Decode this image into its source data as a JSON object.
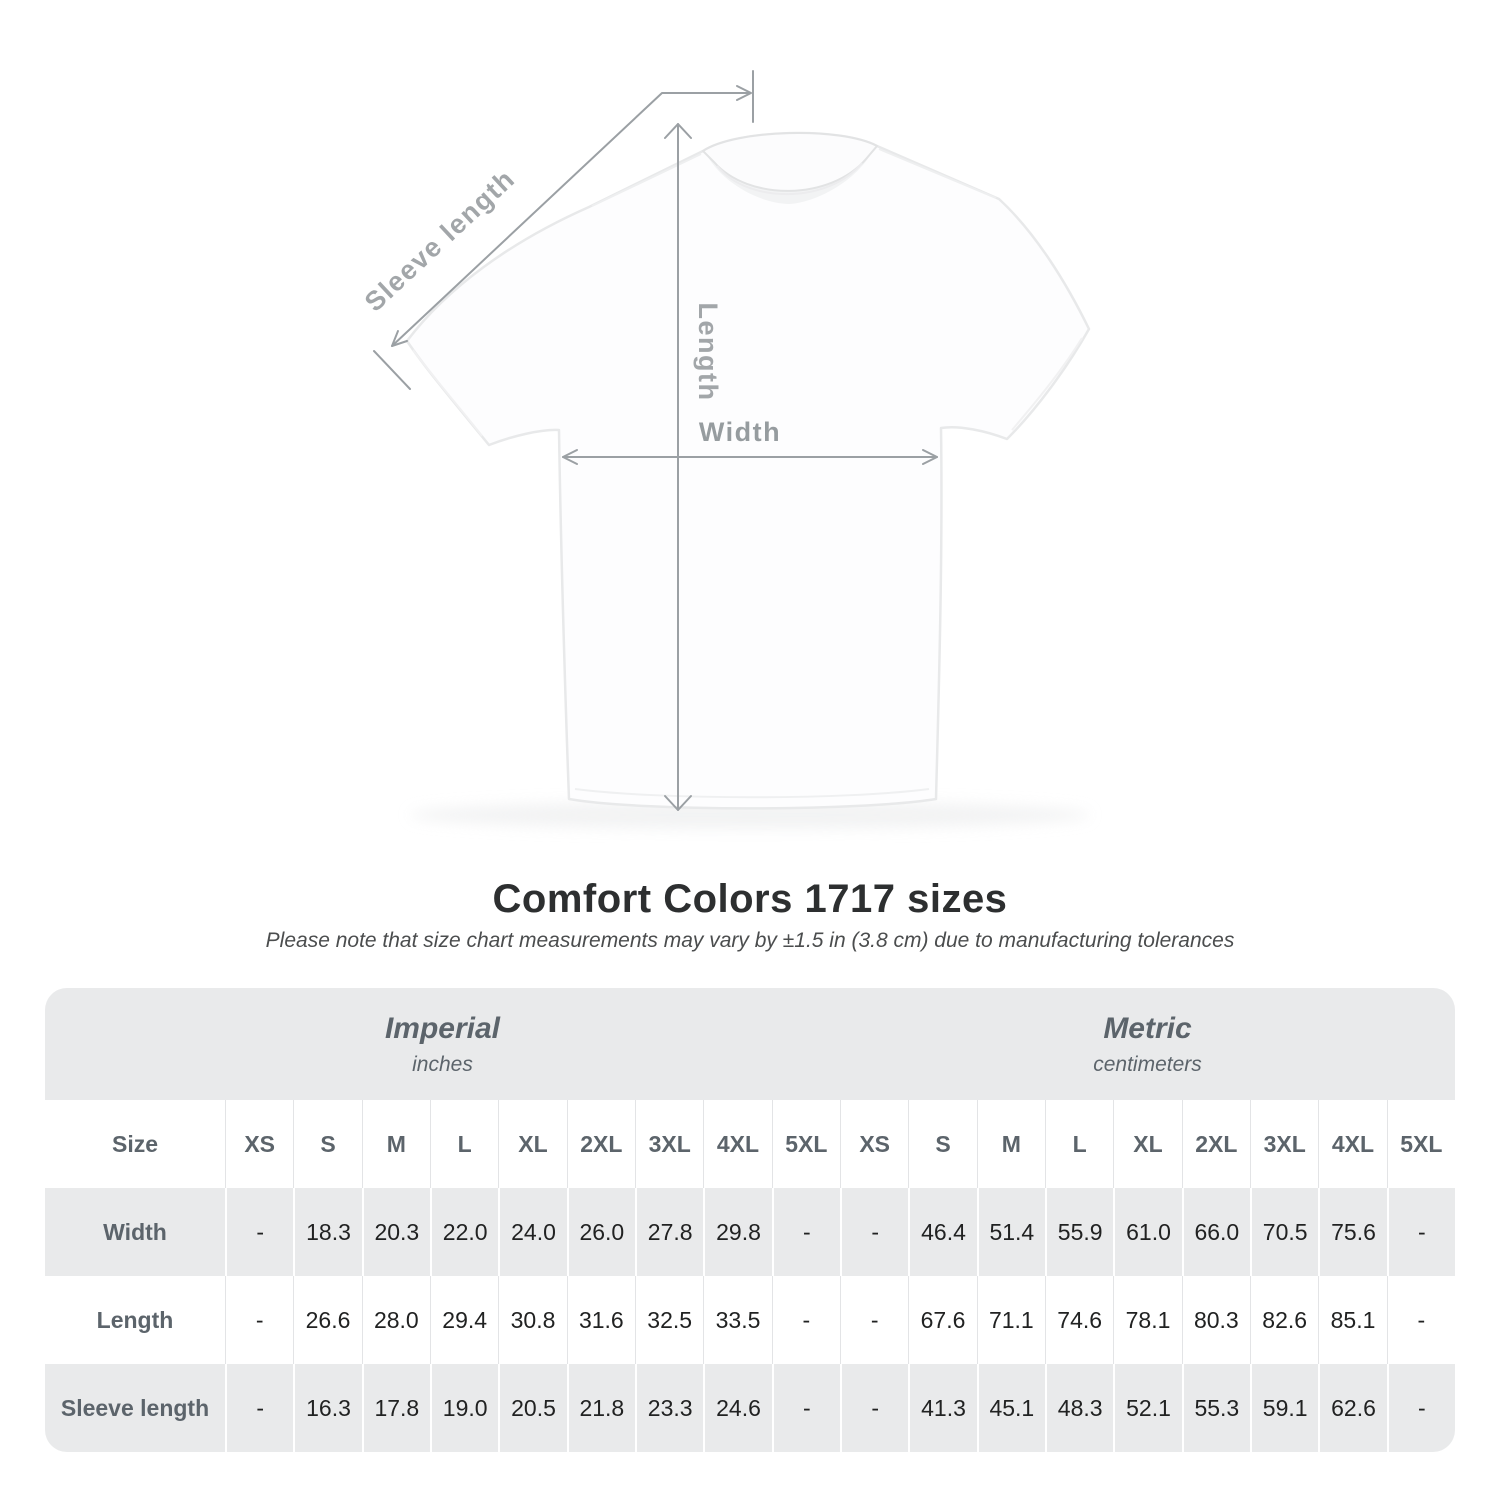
{
  "diagram": {
    "labels": {
      "sleeve_length": "Sleeve length",
      "length": "Length",
      "width": "Width"
    }
  },
  "title": "Comfort Colors 1717 sizes",
  "subtitle": "Please note that size chart measurements may vary by ±1.5 in (3.8 cm) due to manufacturing tolerances",
  "table": {
    "size_header": "Size",
    "groups": [
      {
        "label": "Imperial",
        "unit": "inches"
      },
      {
        "label": "Metric",
        "unit": "centimeters"
      }
    ],
    "sizes": [
      "XS",
      "S",
      "M",
      "L",
      "XL",
      "2XL",
      "3XL",
      "4XL",
      "5XL"
    ],
    "rows": [
      {
        "label": "Width",
        "imperial": [
          "-",
          "18.3",
          "20.3",
          "22.0",
          "24.0",
          "26.0",
          "27.8",
          "29.8",
          "-"
        ],
        "metric": [
          "-",
          "46.4",
          "51.4",
          "55.9",
          "61.0",
          "66.0",
          "70.5",
          "75.6",
          "-"
        ]
      },
      {
        "label": "Length",
        "imperial": [
          "-",
          "26.6",
          "28.0",
          "29.4",
          "30.8",
          "31.6",
          "32.5",
          "33.5",
          "-"
        ],
        "metric": [
          "-",
          "67.6",
          "71.1",
          "74.6",
          "78.1",
          "80.3",
          "82.6",
          "85.1",
          "-"
        ]
      },
      {
        "label": "Sleeve length",
        "imperial": [
          "-",
          "16.3",
          "17.8",
          "19.0",
          "20.5",
          "21.8",
          "23.3",
          "24.6",
          "-"
        ],
        "metric": [
          "-",
          "41.3",
          "45.1",
          "48.3",
          "52.1",
          "55.3",
          "59.1",
          "62.6",
          "-"
        ]
      }
    ]
  },
  "colors": {
    "row_band_gray": "#e9eaeb",
    "header_text_gray": "#5c646b",
    "arrow_gray": "#9ba0a4",
    "value_dark": "#212222"
  },
  "chart_data": {
    "type": "table",
    "title": "Comfort Colors 1717 sizes",
    "note": "Please note that size chart measurements may vary by ±1.5 in (3.8 cm) due to manufacturing tolerances",
    "column_groups": [
      {
        "name": "Imperial",
        "unit": "inches",
        "columns": [
          "XS",
          "S",
          "M",
          "L",
          "XL",
          "2XL",
          "3XL",
          "4XL",
          "5XL"
        ]
      },
      {
        "name": "Metric",
        "unit": "centimeters",
        "columns": [
          "XS",
          "S",
          "M",
          "L",
          "XL",
          "2XL",
          "3XL",
          "4XL",
          "5XL"
        ]
      }
    ],
    "rows": [
      {
        "measurement": "Width",
        "imperial_inches": [
          null,
          18.3,
          20.3,
          22.0,
          24.0,
          26.0,
          27.8,
          29.8,
          null
        ],
        "metric_cm": [
          null,
          46.4,
          51.4,
          55.9,
          61.0,
          66.0,
          70.5,
          75.6,
          null
        ]
      },
      {
        "measurement": "Length",
        "imperial_inches": [
          null,
          26.6,
          28.0,
          29.4,
          30.8,
          31.6,
          32.5,
          33.5,
          null
        ],
        "metric_cm": [
          null,
          67.6,
          71.1,
          74.6,
          78.1,
          80.3,
          82.6,
          85.1,
          null
        ]
      },
      {
        "measurement": "Sleeve length",
        "imperial_inches": [
          null,
          16.3,
          17.8,
          19.0,
          20.5,
          21.8,
          23.3,
          24.6,
          null
        ],
        "metric_cm": [
          null,
          41.3,
          45.1,
          48.3,
          52.1,
          55.3,
          59.1,
          62.6,
          null
        ]
      }
    ]
  }
}
